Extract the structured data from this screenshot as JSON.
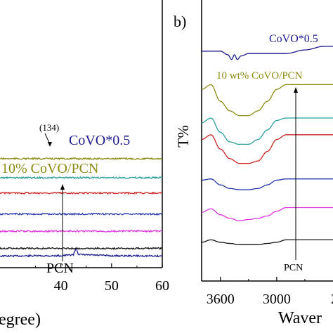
{
  "chart_data": [
    {
      "type": "line",
      "panel_label": "",
      "xlabel": "egree)",
      "ylabel": "",
      "xlim": [
        28,
        60
      ],
      "x_ticks": [
        40,
        50,
        60
      ],
      "series": [
        {
          "name": "CoVO*0.5",
          "color": "#1a1a8c",
          "offset_level": 0.5,
          "x": [
            28,
            40,
            42.5,
            43,
            43.5,
            50,
            60
          ],
          "y": [
            0,
            0.02,
            0.1,
            0.6,
            0.1,
            0.02,
            0
          ]
        },
        {
          "name": "10% CoVO/PCN",
          "color": "#8c8c14",
          "offset_level": 5.6,
          "x": [
            28,
            60
          ],
          "y": [
            0,
            0
          ]
        },
        {
          "name": "",
          "color": "#2a9d9d",
          "offset_level": 4.6,
          "x": [
            28,
            60
          ],
          "y": [
            0,
            0
          ]
        },
        {
          "name": "",
          "color": "#cc2222",
          "offset_level": 3.8,
          "x": [
            28,
            60
          ],
          "y": [
            0,
            0
          ]
        },
        {
          "name": "",
          "color": "#2233aa",
          "offset_level": 2.7,
          "x": [
            28,
            60
          ],
          "y": [
            0,
            0
          ]
        },
        {
          "name": "",
          "color": "#dd33dd",
          "offset_level": 1.8,
          "x": [
            28,
            60
          ],
          "y": [
            0,
            0
          ]
        },
        {
          "name": "PCN",
          "color": "#111111",
          "offset_level": 0.9,
          "x": [
            28,
            60
          ],
          "y": [
            0,
            0
          ]
        }
      ],
      "annotations": [
        {
          "text": "(134)",
          "x": 42.5
        },
        {
          "text": "CoVO*0.5"
        },
        {
          "text": "10% CoVO/PCN"
        },
        {
          "text": "PCN"
        }
      ]
    },
    {
      "type": "line",
      "panel_label": "b)",
      "xlabel": "Waver",
      "ylabel": "T%",
      "xlim": [
        3800,
        2400
      ],
      "x_ticks": [
        3600,
        3000,
        "2"
      ],
      "series": [
        {
          "name": "CoVO*0.5",
          "color": "#1a1a8c",
          "x": [
            3800,
            3600,
            3520,
            3480,
            3450,
            3420,
            3380,
            3300,
            3100,
            2900,
            2700,
            2500,
            2400
          ],
          "y": [
            8.3,
            8.3,
            8.15,
            7.95,
            8.15,
            7.95,
            8.1,
            8.2,
            8.2,
            8.2,
            8.35,
            8.5,
            8.5
          ]
        },
        {
          "name": "10 wt% CoVO/PCN",
          "color": "#8c8c14",
          "x": [
            3800,
            3700,
            3600,
            3500,
            3400,
            3300,
            3200,
            3100,
            3000,
            2900,
            2800,
            2600,
            2400
          ],
          "y": [
            6.7,
            6.9,
            6.2,
            5.8,
            5.6,
            5.6,
            5.8,
            6.2,
            6.7,
            6.9,
            6.9,
            6.9,
            6.9
          ]
        },
        {
          "name": "",
          "color": "#2a9d9d",
          "x": [
            3800,
            3700,
            3600,
            3500,
            3400,
            3300,
            3200,
            3100,
            3000,
            2900,
            2800,
            2600,
            2400
          ],
          "y": [
            5.3,
            5.5,
            4.9,
            4.5,
            4.4,
            4.4,
            4.6,
            5.0,
            5.4,
            5.5,
            5.5,
            5.5,
            5.5
          ]
        },
        {
          "name": "",
          "color": "#cc2222",
          "x": [
            3800,
            3700,
            3600,
            3500,
            3400,
            3300,
            3200,
            3100,
            3000,
            2900,
            2800,
            2600,
            2400
          ],
          "y": [
            4.6,
            4.8,
            4.2,
            3.8,
            3.6,
            3.6,
            3.7,
            4.1,
            4.6,
            4.8,
            4.8,
            4.8,
            4.8
          ]
        },
        {
          "name": "",
          "color": "#2233aa",
          "x": [
            3800,
            3700,
            3600,
            3500,
            3400,
            3300,
            3200,
            3100,
            3000,
            2900,
            2800,
            2600,
            2400
          ],
          "y": [
            2.9,
            2.95,
            2.7,
            2.55,
            2.5,
            2.5,
            2.55,
            2.7,
            2.9,
            2.95,
            2.95,
            2.95,
            2.95
          ]
        },
        {
          "name": "",
          "color": "#dd33dd",
          "x": [
            3800,
            3700,
            3600,
            3500,
            3400,
            3300,
            3200,
            3100,
            3000,
            2900,
            2800,
            2600,
            2400
          ],
          "y": [
            1.55,
            1.7,
            1.45,
            1.3,
            1.2,
            1.25,
            1.3,
            1.4,
            1.6,
            1.75,
            1.75,
            1.75,
            1.75
          ]
        },
        {
          "name": "PCN",
          "color": "#111111",
          "x": [
            3800,
            3700,
            3600,
            3500,
            3400,
            3300,
            3200,
            3100,
            3000,
            2900,
            2800,
            2600,
            2400
          ],
          "y": [
            0.3,
            0.4,
            0.3,
            0.25,
            0.2,
            0.2,
            0.2,
            0.25,
            0.3,
            0.4,
            0.4,
            0.4,
            0.4
          ]
        }
      ],
      "annotations": [
        {
          "text": "CoVO*0.5"
        },
        {
          "text": "10 wt% CoVO/PCN"
        },
        {
          "text": "PCN"
        }
      ]
    }
  ]
}
